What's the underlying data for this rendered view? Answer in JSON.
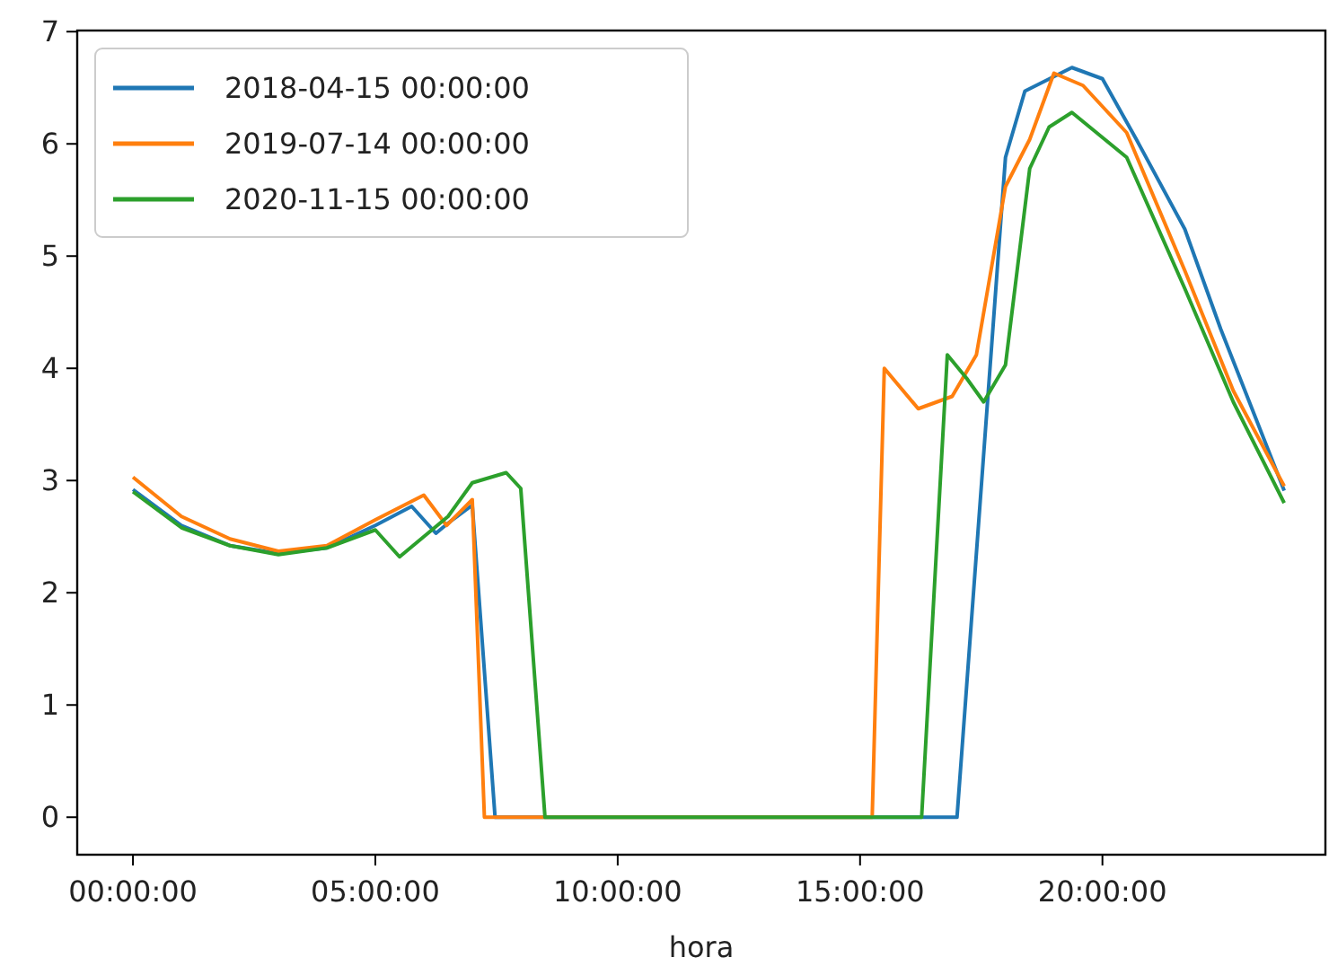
{
  "chart_data": {
    "type": "line",
    "xlabel": "hora",
    "xlim": [
      -1.15,
      24.6
    ],
    "ylim": [
      -0.334,
      7.01
    ],
    "xticks": [
      {
        "value": 0,
        "label": "00:00:00"
      },
      {
        "value": 5,
        "label": "05:00:00"
      },
      {
        "value": 10,
        "label": "10:00:00"
      },
      {
        "value": 15,
        "label": "15:00:00"
      },
      {
        "value": 20,
        "label": "20:00:00"
      }
    ],
    "yticks": [
      0,
      1,
      2,
      3,
      4,
      5,
      6,
      7
    ],
    "grid": false,
    "legend": "top left",
    "marker": "none",
    "line_style": "solid",
    "series": [
      {
        "name": "2018-04-15 00:00:00",
        "color": "#1f77b4",
        "x": [
          0,
          1,
          2,
          3,
          4,
          5,
          5.75,
          6.25,
          6.5,
          7,
          7.47,
          10,
          15,
          17,
          18,
          18.4,
          19.37,
          20,
          20.7,
          21.7,
          22.44,
          23.75
        ],
        "values": [
          2.92,
          2.6,
          2.42,
          2.35,
          2.4,
          2.6,
          2.77,
          2.53,
          2.62,
          2.78,
          0,
          0,
          0,
          0,
          5.88,
          6.47,
          6.68,
          6.58,
          6.04,
          5.24,
          4.35,
          2.91
        ]
      },
      {
        "name": "2019-07-14 00:00:00",
        "color": "#ff7f0e",
        "x": [
          0,
          1,
          2,
          3,
          4,
          5,
          6,
          6.47,
          7,
          7.25,
          10,
          15.25,
          15.5,
          16.2,
          16.9,
          17.4,
          18,
          18.5,
          19,
          19.6,
          20.5,
          21.7,
          22.7,
          23.75
        ],
        "values": [
          3.03,
          2.68,
          2.48,
          2.37,
          2.42,
          2.65,
          2.87,
          2.6,
          2.83,
          0,
          0,
          0,
          4.0,
          3.64,
          3.75,
          4.12,
          5.62,
          6.04,
          6.63,
          6.52,
          6.1,
          4.87,
          3.8,
          2.95
        ]
      },
      {
        "name": "2020-11-15 00:00:00",
        "color": "#2ca02c",
        "x": [
          0,
          1,
          2,
          3,
          4,
          5,
          5.5,
          6.5,
          7,
          7.7,
          8,
          8.5,
          10,
          16.27,
          16.8,
          17.2,
          17.55,
          18,
          18.5,
          18.9,
          19.37,
          20.5,
          21.7,
          22.7,
          23.75
        ],
        "values": [
          2.9,
          2.58,
          2.42,
          2.34,
          2.4,
          2.56,
          2.32,
          2.68,
          2.98,
          3.07,
          2.93,
          0,
          0,
          0,
          4.12,
          3.91,
          3.7,
          4.03,
          5.78,
          6.15,
          6.28,
          5.88,
          4.71,
          3.7,
          2.8
        ]
      }
    ]
  }
}
